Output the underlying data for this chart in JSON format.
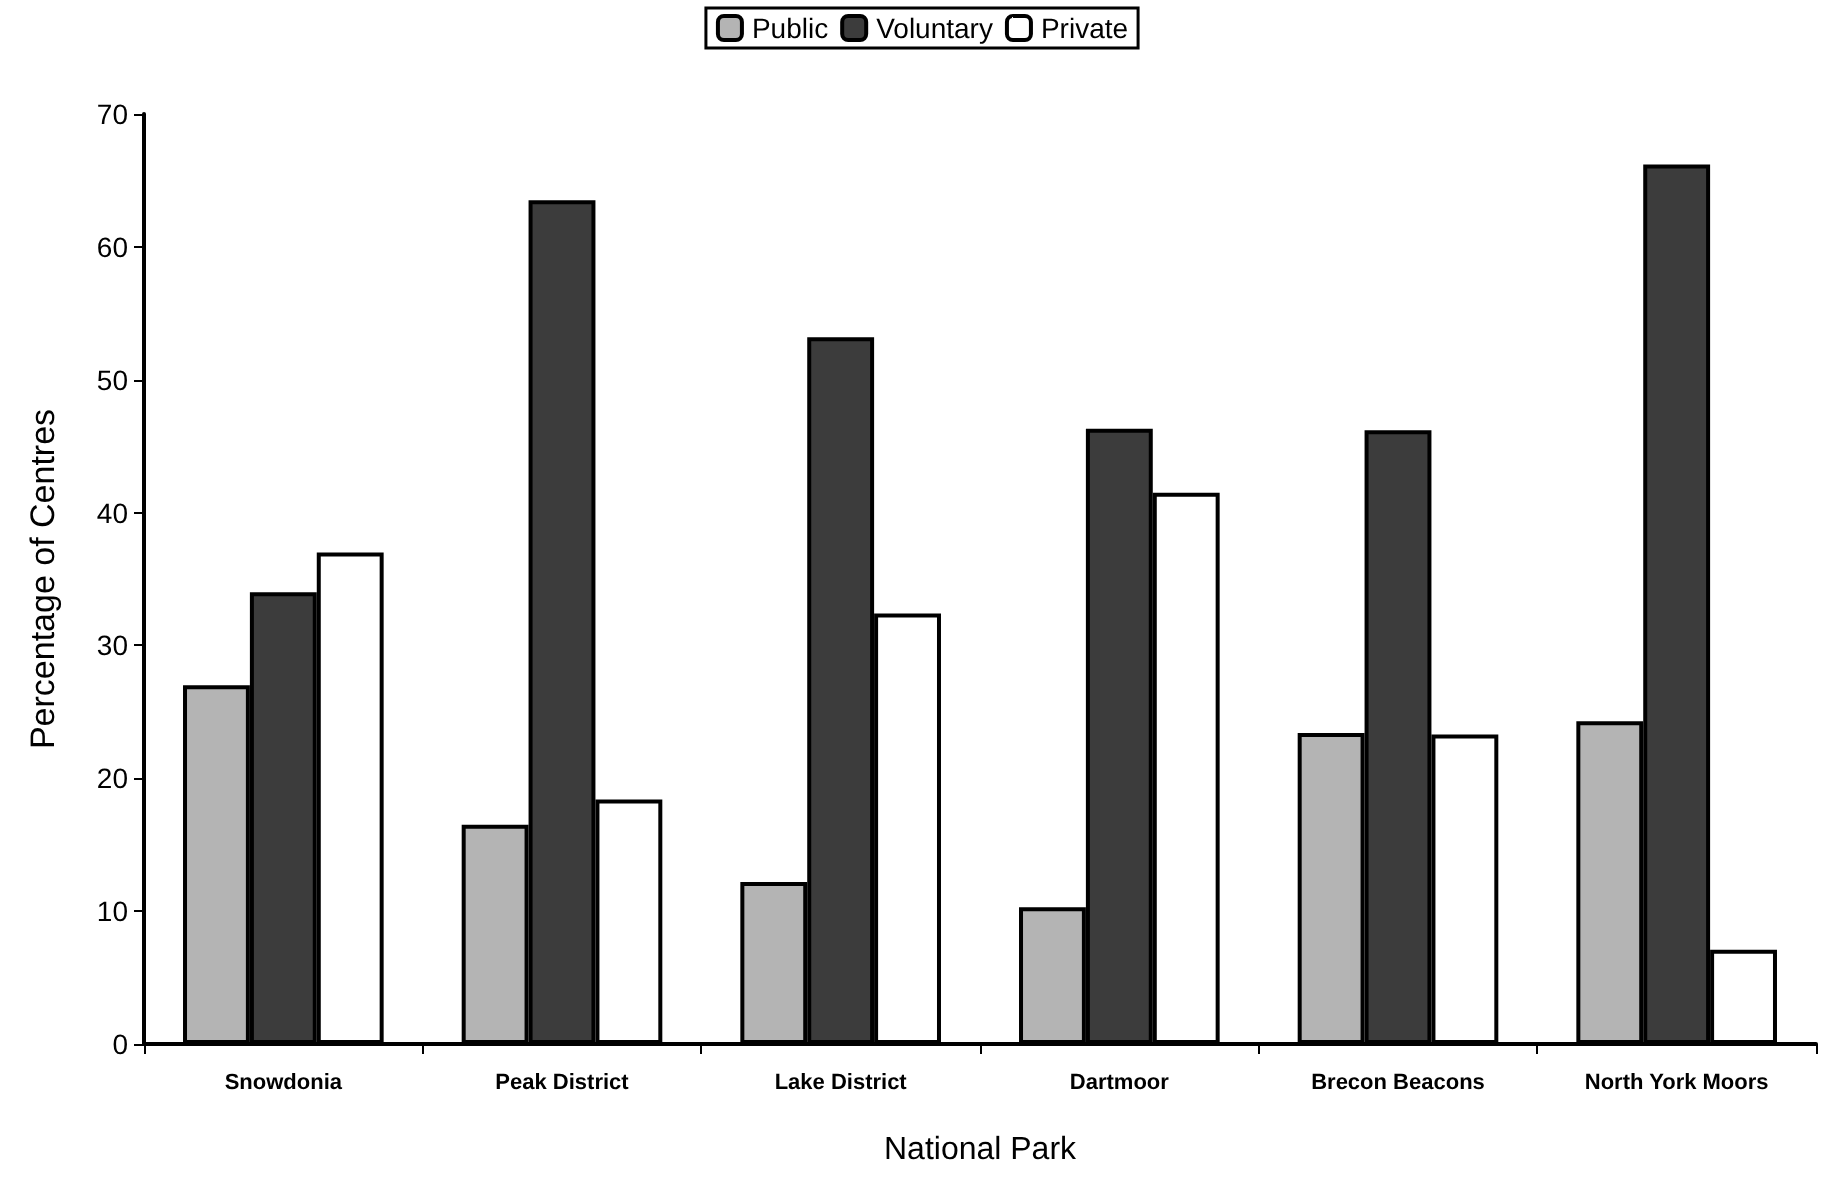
{
  "chart_data": {
    "type": "bar",
    "xlabel": "National Park",
    "ylabel": "Percentage of Centres",
    "categories": [
      "Snowdonia",
      "Peak District",
      "Lake District",
      "Dartmoor",
      "Brecon Beacons",
      "North York Moors"
    ],
    "series": [
      {
        "name": "Public",
        "color": "#b4b4b4",
        "values": [
          27,
          16.5,
          12.2,
          10.3,
          23.4,
          24.3
        ]
      },
      {
        "name": "Voluntary",
        "color": "#3c3c3c",
        "values": [
          34,
          63.5,
          53.2,
          46.3,
          46.2,
          66.2
        ]
      },
      {
        "name": "Private",
        "color": "#ffffff",
        "values": [
          37,
          18.4,
          32.4,
          41.5,
          23.3,
          7.1
        ]
      }
    ],
    "ylim": [
      0,
      70
    ],
    "yticks": [
      0,
      10,
      20,
      30,
      40,
      50,
      60,
      70
    ],
    "grid": false,
    "legend": "top"
  }
}
